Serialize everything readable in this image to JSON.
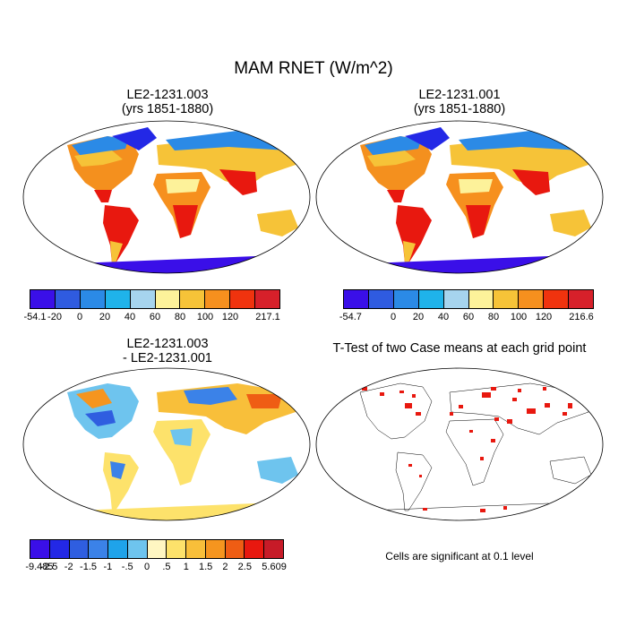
{
  "title": "MAM RNET (W/m^2)",
  "panels": [
    {
      "title1": "LE2-1231.003",
      "title2": "(yrs 1851-1880)"
    },
    {
      "title1": "LE2-1231.001",
      "title2": "(yrs 1851-1880)"
    },
    {
      "title1": "LE2-1231.003",
      "title2": "- LE2-1231.001"
    },
    {
      "title1": "T-Test of two Case means at each grid point",
      "title2": ""
    }
  ],
  "colorbars": [
    {
      "colors": [
        "#3a0fe8",
        "#2f5be0",
        "#2b8ae6",
        "#1fb3ea",
        "#a6d4ee",
        "#fdf29a",
        "#f6c338",
        "#f6901e",
        "#f0330e",
        "#d7202a"
      ],
      "labels": [
        "-54.1",
        "-20",
        "0",
        "20",
        "40",
        "60",
        "80",
        "100",
        "120",
        "217.1"
      ]
    },
    {
      "colors": [
        "#3a0fe8",
        "#2f5be0",
        "#2b8ae6",
        "#1fb3ea",
        "#a6d4ee",
        "#fdf29a",
        "#f6c338",
        "#f6901e",
        "#f0330e",
        "#d7202a"
      ],
      "labels": [
        "-54.7",
        "0",
        "20",
        "40",
        "60",
        "80",
        "100",
        "120",
        "216.6"
      ]
    },
    {
      "colors": [
        "#3a0fe8",
        "#2328e6",
        "#2f5ee0",
        "#3b82e8",
        "#1fa3ea",
        "#6ec4ee",
        "#fff6c2",
        "#fde26b",
        "#f8bf3a",
        "#f5951f",
        "#ef5d14",
        "#e8180f",
        "#c71b28"
      ],
      "labels": [
        "-9.485",
        "-2.5",
        "-2",
        "-1.5",
        "-1",
        "-.5",
        "0",
        ".5",
        "1",
        "1.5",
        "2",
        "2.5",
        "5.609"
      ]
    }
  ],
  "note": "Cells are significant at 0.1 level"
}
